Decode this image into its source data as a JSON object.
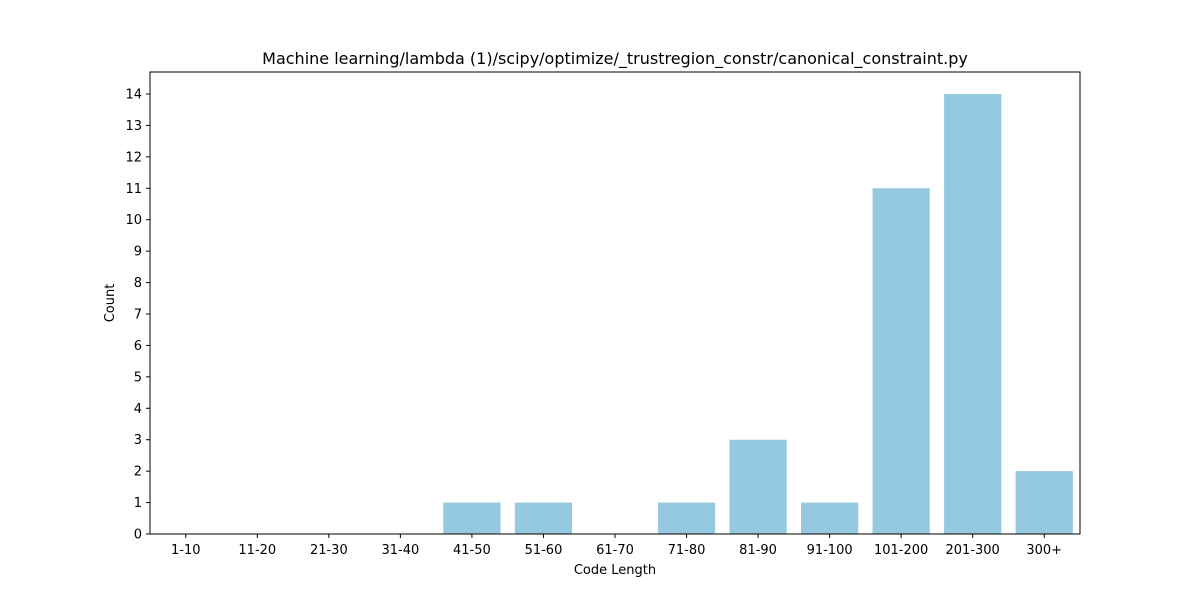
{
  "colors": {
    "bar": "#95c9df",
    "axis": "#000000",
    "background": "#ffffff"
  },
  "chart_data": {
    "type": "bar",
    "title": "Machine learning/lambda (1)/scipy/optimize/_trustregion_constr/canonical_constraint.py",
    "xlabel": "Code Length",
    "ylabel": "Count",
    "categories": [
      "1-10",
      "11-20",
      "21-30",
      "31-40",
      "41-50",
      "51-60",
      "61-70",
      "71-80",
      "81-90",
      "91-100",
      "101-200",
      "201-300",
      "300+"
    ],
    "values": [
      0,
      0,
      0,
      0,
      1,
      1,
      0,
      1,
      3,
      1,
      11,
      14,
      2
    ],
    "ylim": [
      0,
      14.7
    ],
    "yticks": [
      0,
      1,
      2,
      3,
      4,
      5,
      6,
      7,
      8,
      9,
      10,
      11,
      12,
      13,
      14
    ],
    "grid": false,
    "legend": "none"
  }
}
